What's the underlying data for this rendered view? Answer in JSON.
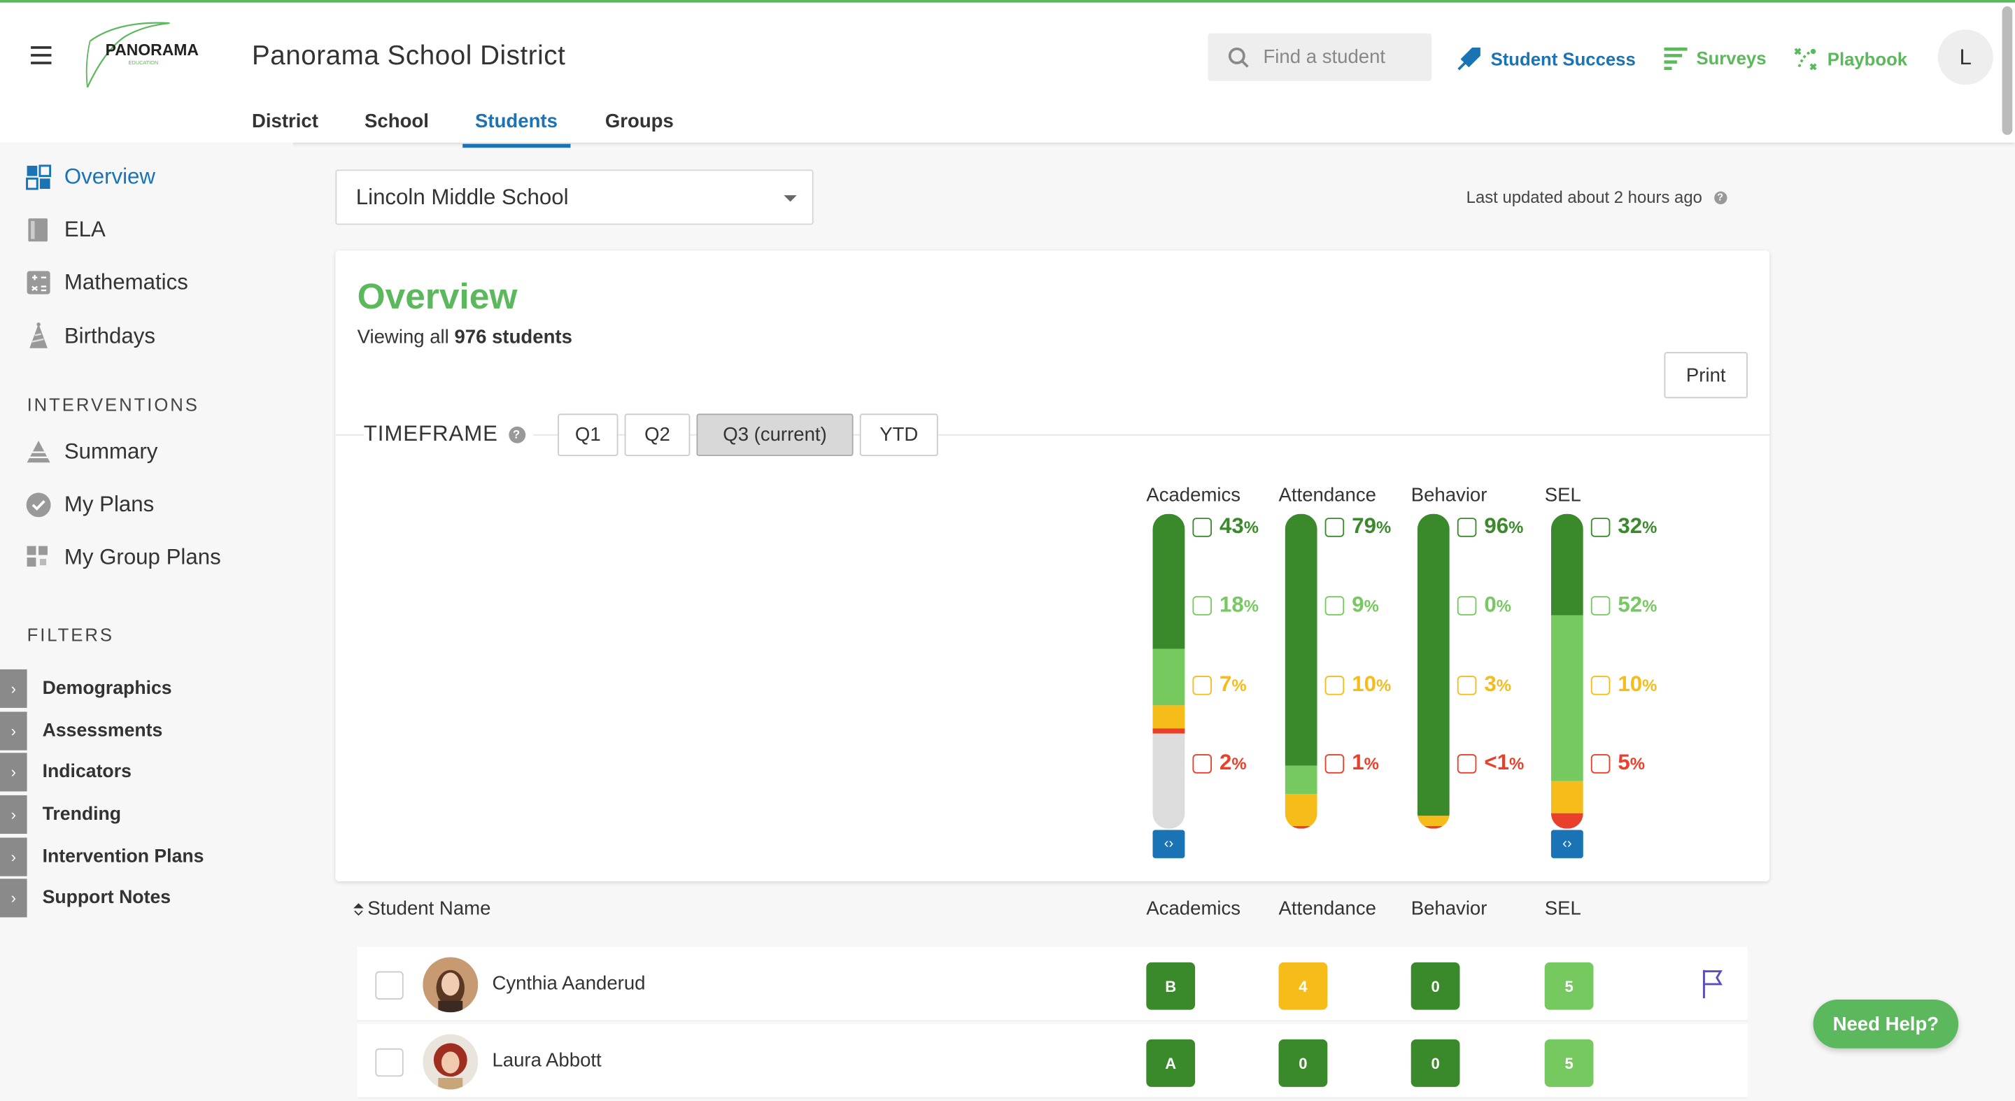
{
  "header": {
    "district_title": "Panorama School District",
    "logo_text": "PANORAMA",
    "logo_subtext": "EDUCATION",
    "tabs": [
      {
        "label": "District"
      },
      {
        "label": "School"
      },
      {
        "label": "Students"
      },
      {
        "label": "Groups"
      }
    ],
    "active_tab": "Students",
    "search_placeholder": "Find a student",
    "nav": {
      "student_success": "Student Success",
      "surveys": "Surveys",
      "playbook": "Playbook"
    },
    "user_initial": "L"
  },
  "sidebar": {
    "items": [
      {
        "label": "Overview",
        "icon": "puzzle-icon"
      },
      {
        "label": "ELA",
        "icon": "book-icon"
      },
      {
        "label": "Mathematics",
        "icon": "calculator-icon"
      },
      {
        "label": "Birthdays",
        "icon": "party-hat-icon"
      }
    ],
    "interventions_heading": "INTERVENTIONS",
    "interventions": [
      {
        "label": "Summary",
        "icon": "pyramid-icon"
      },
      {
        "label": "My Plans",
        "icon": "check-circle-icon"
      },
      {
        "label": "My Group Plans",
        "icon": "grid-icon"
      }
    ],
    "filters_heading": "FILTERS",
    "filters": [
      {
        "label": "Demographics"
      },
      {
        "label": "Assessments"
      },
      {
        "label": "Indicators"
      },
      {
        "label": "Trending"
      },
      {
        "label": "Intervention Plans"
      },
      {
        "label": "Support Notes"
      }
    ]
  },
  "main": {
    "school_select": "Lincoln Middle School",
    "last_updated": "Last updated about 2 hours ago",
    "overview": {
      "title": "Overview",
      "viewing_prefix": "Viewing all",
      "viewing_count": "976 students",
      "print_label": "Print",
      "timeframe_label": "TIMEFRAME",
      "timeframes": [
        "Q1",
        "Q2",
        "Q3 (current)",
        "YTD"
      ],
      "active_timeframe": "Q3 (current)"
    },
    "colors": {
      "dark_green": "#3a8a2c",
      "light_green": "#76c95e",
      "yellow": "#f5bc1a",
      "red": "#e8402a",
      "gray": "#dcdcdc",
      "blue": "#1a73b5"
    },
    "columns": [
      {
        "title": "Academics",
        "levels": [
          {
            "num": "43",
            "sign": "%"
          },
          {
            "num": "18",
            "sign": "%"
          },
          {
            "num": "7",
            "sign": "%"
          },
          {
            "num": "2",
            "sign": "%"
          }
        ],
        "segments": [
          43,
          18,
          7,
          2
        ],
        "no_data": 30,
        "expandable": true
      },
      {
        "title": "Attendance",
        "levels": [
          {
            "num": "79",
            "sign": "%"
          },
          {
            "num": "9",
            "sign": "%"
          },
          {
            "num": "10",
            "sign": "%"
          },
          {
            "num": "1",
            "sign": "%"
          }
        ],
        "segments": [
          79,
          9,
          10,
          1
        ],
        "no_data": 0,
        "expandable": false
      },
      {
        "title": "Behavior",
        "levels": [
          {
            "num": "96",
            "sign": "%"
          },
          {
            "num": "0",
            "sign": "%"
          },
          {
            "num": "3",
            "sign": "%"
          },
          {
            "num": "<1",
            "sign": "%"
          }
        ],
        "segments": [
          96,
          0,
          3,
          1
        ],
        "no_data": 0,
        "expandable": false
      },
      {
        "title": "SEL",
        "levels": [
          {
            "num": "32",
            "sign": "%"
          },
          {
            "num": "52",
            "sign": "%"
          },
          {
            "num": "10",
            "sign": "%"
          },
          {
            "num": "5",
            "sign": "%"
          }
        ],
        "segments": [
          32,
          52,
          10,
          5
        ],
        "no_data": 0,
        "expandable": true
      }
    ],
    "table": {
      "name_header": "Student Name",
      "headers": [
        "Academics",
        "Attendance",
        "Behavior",
        "SEL"
      ],
      "rows": [
        {
          "name": "Cynthia Aanderud",
          "values": [
            "B",
            "4",
            "0",
            "5"
          ],
          "tones": [
            "dark",
            "yellow",
            "dark",
            "light"
          ],
          "flag": true
        },
        {
          "name": "Laura Abbott",
          "values": [
            "A",
            "0",
            "0",
            "5"
          ],
          "tones": [
            "dark",
            "dark",
            "dark",
            "light"
          ],
          "flag": false
        }
      ]
    },
    "help_label": "Need Help?"
  }
}
